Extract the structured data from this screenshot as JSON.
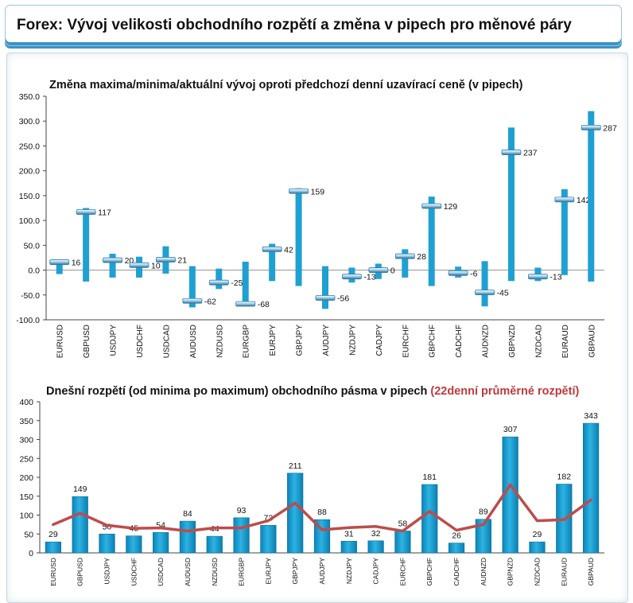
{
  "header": {
    "title": "Forex: Vývoj velikosti obchodního rozpětí a změna v pipech pro měnové páry"
  },
  "colors": {
    "bar": "#1fa0d2",
    "bar_dark": "#0a6f9a",
    "marker": "#2c7fae",
    "avg_line": "#bf4b4b"
  },
  "chart_data": [
    {
      "type": "bar",
      "title": "Změna maxima/minima/aktuální vývoj oproti předchozí denní uzavírací ceně (v pipech)",
      "categories": [
        "EURUSD",
        "GBPUSD",
        "USDJPY",
        "USDCHF",
        "USDCAD",
        "AUDUSD",
        "NZDUSD",
        "EURGBP",
        "EURJPY",
        "GBPJPY",
        "AUDJPY",
        "NZDJPY",
        "CADJPY",
        "EURCHF",
        "GBPCHF",
        "CADCHF",
        "AUDNZD",
        "GBPNZD",
        "NZDCAD",
        "EURAUD",
        "GBPAUD"
      ],
      "series": [
        {
          "name": "Maximum",
          "values": [
            20,
            125,
            33,
            27,
            48,
            8,
            3,
            17,
            53,
            165,
            8,
            5,
            13,
            42,
            148,
            7,
            18,
            287,
            5,
            163,
            320
          ]
        },
        {
          "name": "Minimum",
          "values": [
            -8,
            -23,
            -15,
            -15,
            -7,
            -75,
            -38,
            -73,
            -22,
            -32,
            -78,
            -25,
            -18,
            -15,
            -32,
            -15,
            -73,
            -22,
            -22,
            -10,
            -23
          ]
        },
        {
          "name": "Aktuální vývoj",
          "values": [
            16,
            117,
            20,
            10,
            21,
            -62,
            -25,
            -68,
            42,
            159,
            -56,
            -13,
            0,
            28,
            129,
            -6,
            -45,
            237,
            -13,
            142,
            287
          ]
        }
      ],
      "value_labels": [
        "16",
        "117",
        "20",
        "10",
        "21",
        "-62",
        "-25",
        "-68",
        "42",
        "159",
        "-56",
        "-13",
        "0",
        "28",
        "129",
        "-6",
        "-45",
        "237",
        "-13",
        "142",
        "287"
      ],
      "y_ticks": [
        "350.0",
        "300.0",
        "250.0",
        "200.0",
        "150.0",
        "100.0",
        "50.0",
        "0.0",
        "-50.0",
        "-100.0"
      ],
      "ylim": [
        -100,
        350
      ]
    },
    {
      "type": "bar",
      "title": "Dnešní rozpětí (od minima po maximum) obchodního pásma v pipech",
      "title_note": "(22denní průměrné rozpětí)",
      "categories": [
        "EURUSD",
        "GBPUSD",
        "USDJPY",
        "USDCHF",
        "USDCAD",
        "AUDUSD",
        "NZDUSD",
        "EURGBP",
        "EURJPY",
        "GBPJPY",
        "AUDJPY",
        "NZDJPY",
        "CADJPY",
        "EURCHF",
        "GBPCHF",
        "CADCHF",
        "AUDNZD",
        "GBPNZD",
        "NZDCAD",
        "EURAUD",
        "GBPAUD"
      ],
      "series": [
        {
          "name": "Dnešní rozpětí",
          "values": [
            29,
            149,
            50,
            45,
            54,
            84,
            44,
            93,
            73,
            211,
            88,
            31,
            32,
            58,
            181,
            26,
            89,
            307,
            29,
            182,
            343
          ]
        },
        {
          "name": "22denní průměrné rozpětí",
          "values": [
            75,
            105,
            73,
            65,
            66,
            58,
            66,
            66,
            85,
            132,
            61,
            67,
            70,
            58,
            110,
            60,
            75,
            180,
            85,
            88,
            140
          ]
        }
      ],
      "value_labels": [
        "29",
        "149",
        "50",
        "45",
        "54",
        "84",
        "44",
        "93",
        "73",
        "211",
        "88",
        "31",
        "32",
        "58",
        "181",
        "26",
        "89",
        "307",
        "29",
        "182",
        "343"
      ],
      "y_ticks": [
        "400",
        "350",
        "300",
        "250",
        "200",
        "150",
        "100",
        "50",
        "0"
      ],
      "ylim": [
        0,
        400
      ]
    }
  ]
}
